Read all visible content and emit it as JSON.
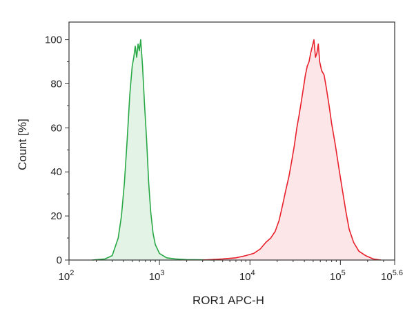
{
  "chart_data": {
    "type": "area",
    "chart_kind": "flow cytometry histogram overlay",
    "xlabel": "ROR1 APC-H",
    "ylabel": "Count [%]",
    "x_scale": "log10",
    "xlim": [
      100,
      398107
    ],
    "ylim": [
      0,
      108
    ],
    "x_ticks": [
      {
        "base": "10",
        "exp": "2",
        "value": 100
      },
      {
        "base": "10",
        "exp": "3",
        "value": 1000
      },
      {
        "base": "10",
        "exp": "4",
        "value": 10000
      },
      {
        "base": "10",
        "exp": "5",
        "value": 100000
      },
      {
        "base": "10",
        "exp": "5.6",
        "value": 398107
      }
    ],
    "y_ticks": [
      "0",
      "20",
      "40",
      "60",
      "80",
      "100"
    ],
    "grid": false,
    "legend": "none",
    "series": [
      {
        "line_color": "#27a845",
        "fill_color": "#e3f4e6",
        "points": [
          [
            180,
            0
          ],
          [
            250,
            0.5
          ],
          [
            300,
            2
          ],
          [
            350,
            10
          ],
          [
            380,
            20
          ],
          [
            410,
            35
          ],
          [
            440,
            55
          ],
          [
            470,
            75
          ],
          [
            500,
            88
          ],
          [
            520,
            92
          ],
          [
            540,
            97
          ],
          [
            560,
            92
          ],
          [
            580,
            98
          ],
          [
            600,
            95
          ],
          [
            620,
            100
          ],
          [
            650,
            88
          ],
          [
            680,
            72
          ],
          [
            720,
            55
          ],
          [
            760,
            35
          ],
          [
            800,
            22
          ],
          [
            850,
            12
          ],
          [
            900,
            7
          ],
          [
            1000,
            3
          ],
          [
            1200,
            1
          ],
          [
            1500,
            0.5
          ],
          [
            2000,
            0.2
          ],
          [
            3000,
            0.1
          ],
          [
            4000,
            0
          ]
        ]
      },
      {
        "line_color": "#e8202b",
        "fill_color": "#fde6e8",
        "points": [
          [
            3000,
            0
          ],
          [
            5000,
            0.5
          ],
          [
            7000,
            1
          ],
          [
            9000,
            2
          ],
          [
            11000,
            3
          ],
          [
            13000,
            5
          ],
          [
            15000,
            8
          ],
          [
            17000,
            10
          ],
          [
            19000,
            13
          ],
          [
            21000,
            18
          ],
          [
            23000,
            25
          ],
          [
            25000,
            32
          ],
          [
            27000,
            38
          ],
          [
            29000,
            45
          ],
          [
            31000,
            52
          ],
          [
            33000,
            60
          ],
          [
            35000,
            66
          ],
          [
            37000,
            72
          ],
          [
            39000,
            78
          ],
          [
            41000,
            84
          ],
          [
            43000,
            88
          ],
          [
            45000,
            90
          ],
          [
            47000,
            94
          ],
          [
            49000,
            97
          ],
          [
            51000,
            100
          ],
          [
            53000,
            92
          ],
          [
            55000,
            94
          ],
          [
            57000,
            98
          ],
          [
            59000,
            90
          ],
          [
            62000,
            86
          ],
          [
            66000,
            84
          ],
          [
            70000,
            78
          ],
          [
            75000,
            70
          ],
          [
            80000,
            62
          ],
          [
            88000,
            52
          ],
          [
            96000,
            42
          ],
          [
            105000,
            32
          ],
          [
            115000,
            22
          ],
          [
            125000,
            14
          ],
          [
            140000,
            8
          ],
          [
            160000,
            4
          ],
          [
            190000,
            2
          ],
          [
            230000,
            0.5
          ],
          [
            280000,
            0
          ]
        ]
      }
    ]
  }
}
